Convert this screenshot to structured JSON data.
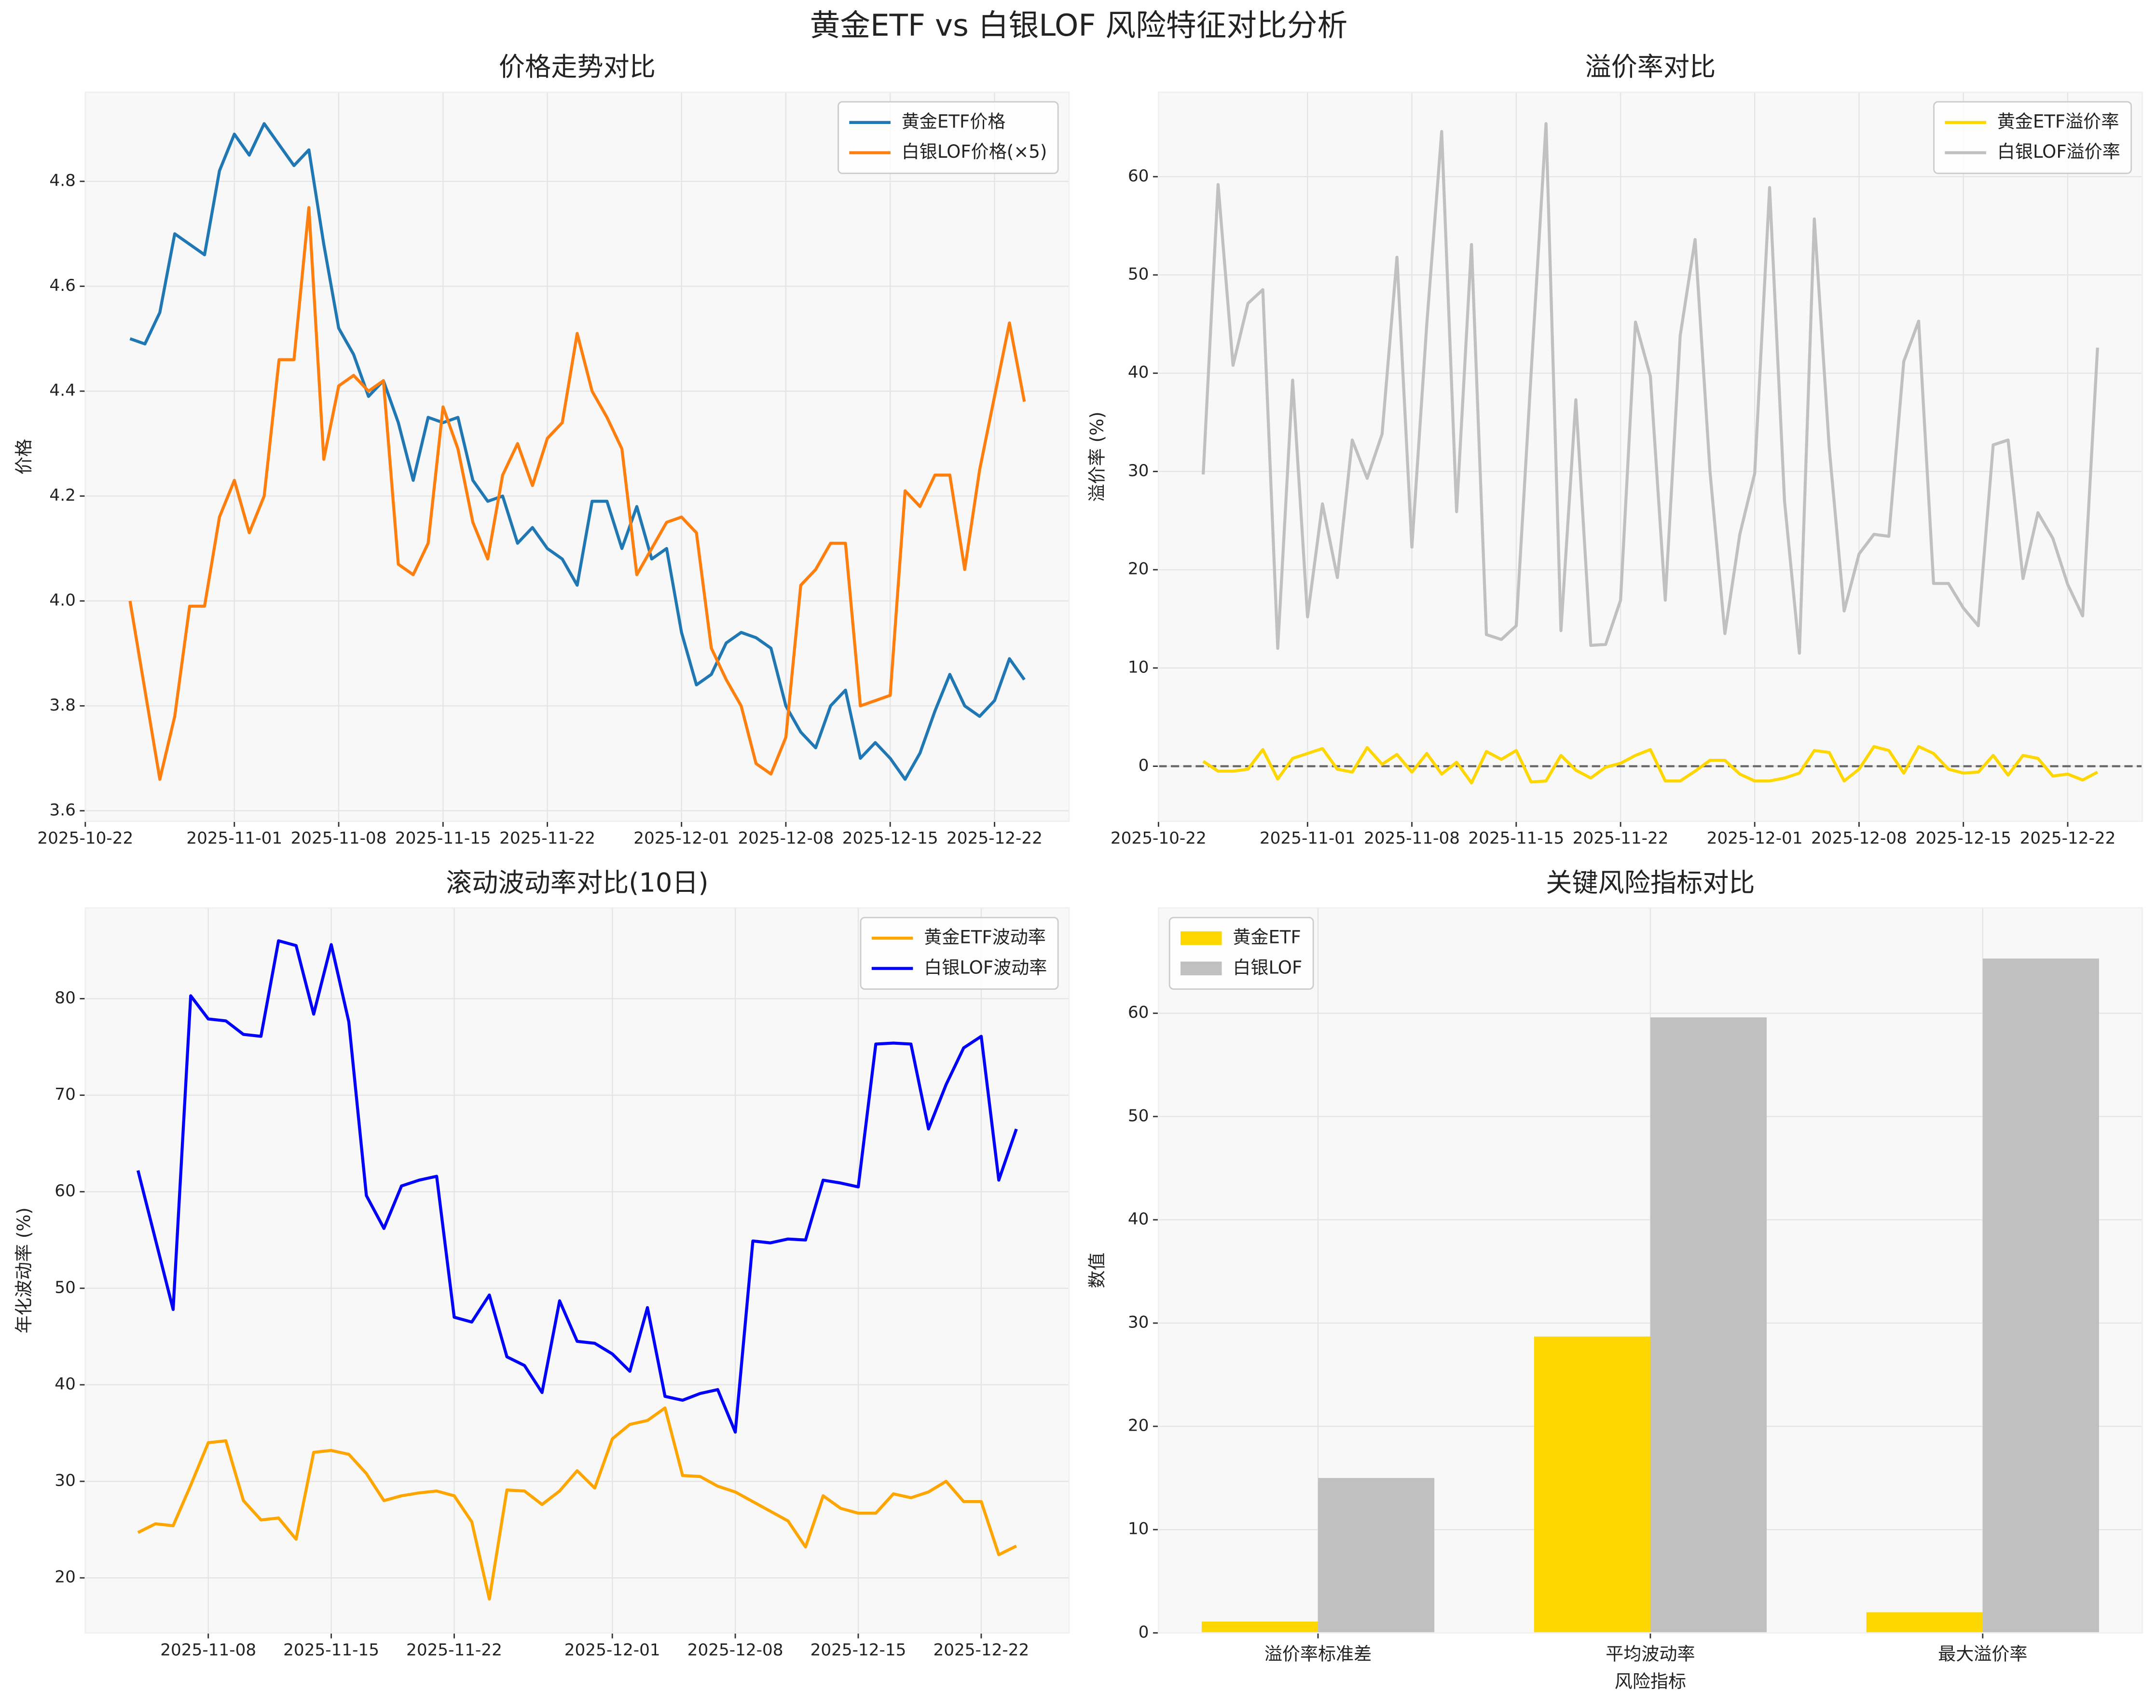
{
  "title": "黄金ETF vs 白银LOF 风险特征对比分析",
  "chart_data": [
    {
      "type": "line",
      "title": "价格走势对比",
      "ylabel": "价格",
      "grid": true,
      "legend": "upper right",
      "x": [
        "2025-10-25",
        "2025-10-26",
        "2025-10-27",
        "2025-10-28",
        "2025-10-29",
        "2025-10-30",
        "2025-10-31",
        "2025-11-01",
        "2025-11-02",
        "2025-11-03",
        "2025-11-04",
        "2025-11-05",
        "2025-11-06",
        "2025-11-07",
        "2025-11-08",
        "2025-11-09",
        "2025-11-10",
        "2025-11-11",
        "2025-11-12",
        "2025-11-13",
        "2025-11-14",
        "2025-11-15",
        "2025-11-16",
        "2025-11-17",
        "2025-11-18",
        "2025-11-19",
        "2025-11-20",
        "2025-11-21",
        "2025-11-22",
        "2025-11-23",
        "2025-11-24",
        "2025-11-25",
        "2025-11-26",
        "2025-11-27",
        "2025-11-28",
        "2025-11-29",
        "2025-11-30",
        "2025-12-01",
        "2025-12-02",
        "2025-12-03",
        "2025-12-04",
        "2025-12-05",
        "2025-12-06",
        "2025-12-07",
        "2025-12-08",
        "2025-12-09",
        "2025-12-10",
        "2025-12-11",
        "2025-12-12",
        "2025-12-13",
        "2025-12-14",
        "2025-12-15",
        "2025-12-16",
        "2025-12-17",
        "2025-12-18",
        "2025-12-19",
        "2025-12-20",
        "2025-12-21",
        "2025-12-22",
        "2025-12-23",
        "2025-12-24"
      ],
      "xlim": [
        "2025-10-22",
        "2025-12-27"
      ],
      "xticks": [
        "2025-10-22",
        "2025-11-01",
        "2025-11-08",
        "2025-11-15",
        "2025-11-22",
        "2025-12-01",
        "2025-12-08",
        "2025-12-15",
        "2025-12-22"
      ],
      "ylim": [
        3.58,
        4.97
      ],
      "yticks": [
        3.6,
        3.8,
        {
          "value": 4,
          "label": "4.0"
        },
        4.2,
        4.4,
        4.6,
        4.8
      ],
      "series": [
        {
          "name": "黄金ETF价格",
          "color": "#1f77b4",
          "values": [
            4.5,
            4.49,
            4.55,
            4.7,
            4.68,
            4.66,
            4.82,
            4.89,
            4.85,
            4.91,
            4.87,
            4.83,
            4.86,
            4.68,
            4.52,
            4.47,
            4.39,
            4.42,
            4.34,
            4.23,
            4.35,
            4.34,
            4.35,
            4.23,
            4.19,
            4.2,
            4.11,
            4.14,
            4.1,
            4.08,
            4.03,
            4.19,
            4.19,
            4.1,
            4.18,
            4.08,
            4.1,
            3.94,
            3.84,
            3.86,
            3.92,
            3.94,
            3.93,
            3.91,
            3.8,
            3.75,
            3.72,
            3.8,
            3.83,
            3.7,
            3.73,
            3.7,
            3.66,
            3.71,
            3.79,
            3.86,
            3.8,
            3.78,
            3.81,
            3.89,
            3.85
          ]
        },
        {
          "name": "白银LOF价格(×5)",
          "color": "#ff7f0e",
          "values": [
            4.0,
            3.83,
            3.66,
            3.78,
            3.99,
            3.99,
            4.16,
            4.23,
            4.13,
            4.2,
            4.46,
            4.46,
            4.75,
            4.27,
            4.41,
            4.43,
            4.4,
            4.42,
            4.07,
            4.05,
            4.11,
            4.37,
            4.29,
            4.15,
            4.08,
            4.24,
            4.3,
            4.22,
            4.31,
            4.34,
            4.51,
            4.4,
            4.35,
            4.29,
            4.05,
            4.1,
            4.15,
            4.16,
            4.13,
            3.91,
            3.85,
            3.8,
            3.69,
            3.67,
            3.74,
            4.03,
            4.06,
            4.11,
            4.11,
            3.8,
            3.81,
            3.82,
            4.21,
            4.18,
            4.24,
            4.24,
            4.06,
            4.25,
            4.39,
            4.53,
            4.38
          ]
        }
      ]
    },
    {
      "type": "line",
      "title": "溢价率对比",
      "ylabel": "溢价率 (%)",
      "grid": true,
      "legend": "upper right",
      "hline": 0,
      "x": [
        "2025-10-25",
        "2025-10-26",
        "2025-10-27",
        "2025-10-28",
        "2025-10-29",
        "2025-10-30",
        "2025-10-31",
        "2025-11-01",
        "2025-11-02",
        "2025-11-03",
        "2025-11-04",
        "2025-11-05",
        "2025-11-06",
        "2025-11-07",
        "2025-11-08",
        "2025-11-09",
        "2025-11-10",
        "2025-11-11",
        "2025-11-12",
        "2025-11-13",
        "2025-11-14",
        "2025-11-15",
        "2025-11-16",
        "2025-11-17",
        "2025-11-18",
        "2025-11-19",
        "2025-11-20",
        "2025-11-21",
        "2025-11-22",
        "2025-11-23",
        "2025-11-24",
        "2025-11-25",
        "2025-11-26",
        "2025-11-27",
        "2025-11-28",
        "2025-11-29",
        "2025-11-30",
        "2025-12-01",
        "2025-12-02",
        "2025-12-03",
        "2025-12-04",
        "2025-12-05",
        "2025-12-06",
        "2025-12-07",
        "2025-12-08",
        "2025-12-09",
        "2025-12-10",
        "2025-12-11",
        "2025-12-12",
        "2025-12-13",
        "2025-12-14",
        "2025-12-15",
        "2025-12-16",
        "2025-12-17",
        "2025-12-18",
        "2025-12-19",
        "2025-12-20",
        "2025-12-21",
        "2025-12-22",
        "2025-12-23",
        "2025-12-24"
      ],
      "xlim": [
        "2025-10-22",
        "2025-12-27"
      ],
      "xticks": [
        "2025-10-22",
        "2025-11-01",
        "2025-11-08",
        "2025-11-15",
        "2025-11-22",
        "2025-12-01",
        "2025-12-08",
        "2025-12-15",
        "2025-12-22"
      ],
      "ylim": [
        -5.6,
        68.6
      ],
      "yticks": [
        0,
        10,
        20,
        30,
        40,
        50,
        60
      ],
      "series": [
        {
          "name": "黄金ETF溢价率",
          "color": "#FFD700",
          "values": [
            0.5,
            -0.5,
            -0.5,
            -0.3,
            1.7,
            -1.3,
            0.8,
            1.3,
            1.8,
            -0.3,
            -0.6,
            1.9,
            0.2,
            1.2,
            -0.6,
            1.3,
            -0.8,
            0.4,
            -1.7,
            1.5,
            0.7,
            1.6,
            -1.6,
            -1.5,
            1.1,
            -0.4,
            -1.2,
            -0.1,
            0.3,
            1.1,
            1.7,
            -1.5,
            -1.5,
            -0.5,
            0.6,
            0.6,
            -0.8,
            -1.5,
            -1.5,
            -1.2,
            -0.7,
            1.6,
            1.4,
            -1.5,
            -0.3,
            2.0,
            1.6,
            -0.7,
            2.0,
            1.3,
            -0.3,
            -0.7,
            -0.6,
            1.1,
            -0.9,
            1.1,
            0.8,
            -1.0,
            -0.8,
            -1.4,
            -0.6
          ]
        },
        {
          "name": "白银LOF溢价率",
          "color": "#C0C0C0",
          "values": [
            29.7,
            59.2,
            40.8,
            47.1,
            48.5,
            12,
            39.3,
            15.2,
            26.7,
            19.2,
            33.2,
            29.3,
            33.8,
            51.8,
            22.3,
            45,
            64.6,
            25.9,
            53.1,
            13.4,
            12.9,
            14.3,
            40,
            65.4,
            13.8,
            37.3,
            12.3,
            12.4,
            16.9,
            45.2,
            39.7,
            16.9,
            43.8,
            53.6,
            30,
            13.5,
            23.6,
            29.8,
            58.9,
            27,
            11.5,
            55.7,
            32.4,
            15.8,
            21.6,
            23.6,
            23.4,
            41.2,
            45.3,
            18.6,
            18.6,
            16.1,
            14.3,
            32.7,
            33.2,
            19.1,
            25.8,
            23.2,
            18.5,
            15.3,
            42.6
          ]
        }
      ]
    },
    {
      "type": "line",
      "title": "滚动波动率对比(10日)",
      "ylabel": "年化波动率 (%)",
      "grid": true,
      "legend": "upper right",
      "x": [
        "2025-11-04",
        "2025-11-05",
        "2025-11-06",
        "2025-11-07",
        "2025-11-08",
        "2025-11-09",
        "2025-11-10",
        "2025-11-11",
        "2025-11-12",
        "2025-11-13",
        "2025-11-14",
        "2025-11-15",
        "2025-11-16",
        "2025-11-17",
        "2025-11-18",
        "2025-11-19",
        "2025-11-20",
        "2025-11-21",
        "2025-11-22",
        "2025-11-23",
        "2025-11-24",
        "2025-11-25",
        "2025-11-26",
        "2025-11-27",
        "2025-11-28",
        "2025-11-29",
        "2025-11-30",
        "2025-12-01",
        "2025-12-02",
        "2025-12-03",
        "2025-12-04",
        "2025-12-05",
        "2025-12-06",
        "2025-12-07",
        "2025-12-08",
        "2025-12-09",
        "2025-12-10",
        "2025-12-11",
        "2025-12-12",
        "2025-12-13",
        "2025-12-14",
        "2025-12-15",
        "2025-12-16",
        "2025-12-17",
        "2025-12-18",
        "2025-12-19",
        "2025-12-20",
        "2025-12-21",
        "2025-12-22",
        "2025-12-23",
        "2025-12-24"
      ],
      "xlim": [
        "2025-11-01",
        "2025-12-27"
      ],
      "xticks": [
        "2025-11-08",
        "2025-11-15",
        "2025-11-22",
        "2025-12-01",
        "2025-12-08",
        "2025-12-15",
        "2025-12-22"
      ],
      "ylim": [
        14.3,
        89.4
      ],
      "yticks": [
        20,
        30,
        40,
        50,
        60,
        70,
        80
      ],
      "series": [
        {
          "name": "黄金ETF波动率",
          "color": "#FFA500",
          "values": [
            24.7,
            25.6,
            25.4,
            29.6,
            34,
            34.2,
            28,
            26,
            26.2,
            24,
            33,
            33.2,
            32.8,
            30.8,
            28,
            28.5,
            28.8,
            29,
            28.5,
            25.8,
            17.8,
            29.1,
            29,
            27.6,
            29,
            31.1,
            29.3,
            34.4,
            35.9,
            36.3,
            37.6,
            30.6,
            30.5,
            29.5,
            28.9,
            27.9,
            26.9,
            25.9,
            23.2,
            28.5,
            27.2,
            26.7,
            26.7,
            28.7,
            28.3,
            28.9,
            30,
            27.9,
            27.9,
            22.4,
            23.3
          ]
        },
        {
          "name": "白银LOF波动率",
          "color": "#0000FF",
          "values": [
            62.2,
            55,
            47.8,
            80.3,
            77.9,
            77.7,
            76.3,
            76.1,
            86,
            85.5,
            78.4,
            85.6,
            77.6,
            59.6,
            56.2,
            60.6,
            61.2,
            61.6,
            47,
            46.5,
            49.3,
            42.9,
            42,
            39.2,
            48.7,
            44.5,
            44.3,
            43.2,
            41.4,
            48,
            38.8,
            38.4,
            39.1,
            39.5,
            35.1,
            54.9,
            54.7,
            55.1,
            55,
            61.2,
            60.9,
            60.5,
            75.3,
            75.4,
            75.3,
            66.5,
            71.1,
            74.9,
            76.1,
            61.2,
            66.5
          ]
        }
      ]
    },
    {
      "type": "bar",
      "title": "关键风险指标对比",
      "xlabel": "风险指标",
      "ylabel": "数值",
      "grid": true,
      "legend": "upper left",
      "categories": [
        "溢价率标准差",
        "平均波动率",
        "最大溢价率"
      ],
      "ylim": [
        0,
        70.2
      ],
      "yticks": [
        0,
        10,
        20,
        30,
        40,
        50,
        60
      ],
      "series": [
        {
          "name": "黄金ETF",
          "color": "#FFD700",
          "values": [
            1.1,
            28.7,
            2.0
          ]
        },
        {
          "name": "白银LOF",
          "color": "#C0C0C0",
          "values": [
            15.0,
            59.6,
            65.3
          ]
        }
      ]
    }
  ]
}
